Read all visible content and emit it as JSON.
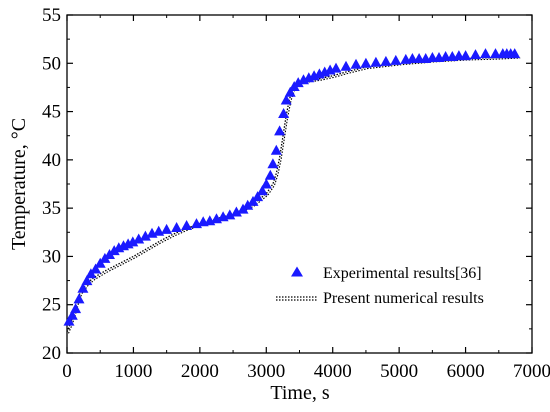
{
  "chart_data": {
    "type": "scatter",
    "xlabel": "Time, s",
    "ylabel": "Temperature, °C",
    "xlim": [
      0,
      7000
    ],
    "ylim": [
      20,
      55
    ],
    "xticks": [
      0,
      1000,
      2000,
      3000,
      4000,
      5000,
      6000,
      7000
    ],
    "yticks": [
      20,
      25,
      30,
      35,
      40,
      45,
      50,
      55
    ],
    "grid": false,
    "legend_position": "lower-right",
    "series": [
      {
        "name": "Experimental results[36]",
        "kind": "scatter",
        "marker": "triangle",
        "color": "#1a1aff",
        "x": [
          30,
          80,
          130,
          180,
          240,
          300,
          360,
          430,
          500,
          570,
          640,
          710,
          780,
          850,
          920,
          990,
          1080,
          1180,
          1280,
          1380,
          1500,
          1650,
          1800,
          1950,
          2050,
          2150,
          2250,
          2350,
          2450,
          2550,
          2650,
          2720,
          2800,
          2870,
          2940,
          3000,
          3060,
          3100,
          3150,
          3200,
          3260,
          3300,
          3360,
          3420,
          3480,
          3560,
          3640,
          3720,
          3800,
          3880,
          3960,
          4050,
          4200,
          4350,
          4500,
          4650,
          4800,
          4950,
          5100,
          5200,
          5300,
          5400,
          5500,
          5600,
          5700,
          5800,
          5900,
          6000,
          6150,
          6300,
          6450,
          6560,
          6620,
          6680,
          6740
        ],
        "y": [
          23.3,
          23.9,
          24.6,
          25.6,
          26.7,
          27.5,
          28.2,
          28.7,
          29.3,
          29.8,
          30.2,
          30.6,
          30.9,
          31.1,
          31.3,
          31.5,
          31.8,
          32.1,
          32.4,
          32.6,
          32.8,
          33.0,
          33.2,
          33.4,
          33.6,
          33.7,
          33.9,
          34.1,
          34.3,
          34.6,
          34.9,
          35.3,
          35.7,
          36.2,
          36.8,
          37.5,
          38.4,
          39.6,
          41.0,
          43.0,
          44.8,
          46.2,
          47.0,
          47.6,
          48.0,
          48.3,
          48.5,
          48.7,
          48.9,
          49.1,
          49.3,
          49.5,
          49.7,
          49.9,
          50.0,
          50.1,
          50.2,
          50.3,
          50.4,
          50.5,
          50.5,
          50.5,
          50.6,
          50.6,
          50.7,
          50.7,
          50.8,
          50.8,
          50.9,
          51.0,
          51.0,
          51.0,
          51.0,
          51.0,
          51.0
        ]
      },
      {
        "name": "Present numerical results",
        "kind": "line",
        "style": "dotted",
        "color": "#000000",
        "x": [
          0,
          50,
          100,
          150,
          200,
          300,
          400,
          600,
          800,
          1000,
          1200,
          1400,
          1600,
          1800,
          2000,
          2200,
          2400,
          2600,
          2800,
          3000,
          3100,
          3150,
          3200,
          3250,
          3300,
          3350,
          3400,
          3450,
          3500,
          3600,
          3800,
          4000,
          4200,
          4500,
          5000,
          5500,
          6000,
          6500,
          6800
        ],
        "y": [
          22.2,
          23.0,
          24.0,
          25.3,
          26.3,
          27.2,
          27.8,
          28.6,
          29.3,
          30.0,
          30.8,
          31.6,
          32.3,
          32.9,
          33.4,
          33.8,
          34.2,
          34.7,
          35.4,
          36.5,
          37.5,
          38.6,
          40.2,
          42.4,
          44.6,
          46.3,
          47.3,
          47.8,
          48.0,
          48.2,
          48.4,
          48.7,
          49.1,
          49.6,
          50.0,
          50.3,
          50.5,
          50.6,
          50.7
        ]
      }
    ]
  }
}
